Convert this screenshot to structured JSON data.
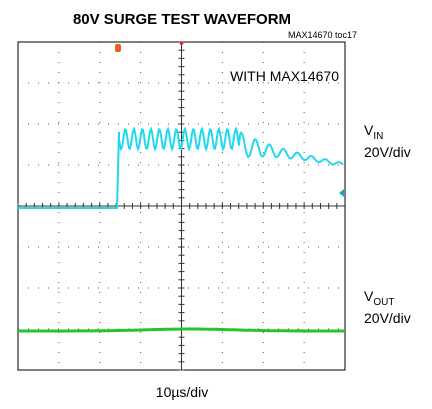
{
  "header": {
    "title": "80V SURGE TEST WAVEFORM",
    "figure_id": "MAX14670 toc17"
  },
  "screen": {
    "annotation": "WITH MAX14670"
  },
  "channels": [
    {
      "name_main": "V",
      "name_sub": "IN",
      "scale": "20V/div"
    },
    {
      "name_main": "V",
      "name_sub": "OUT",
      "scale": "20V/div"
    }
  ],
  "timebase": "10µs/div"
}
